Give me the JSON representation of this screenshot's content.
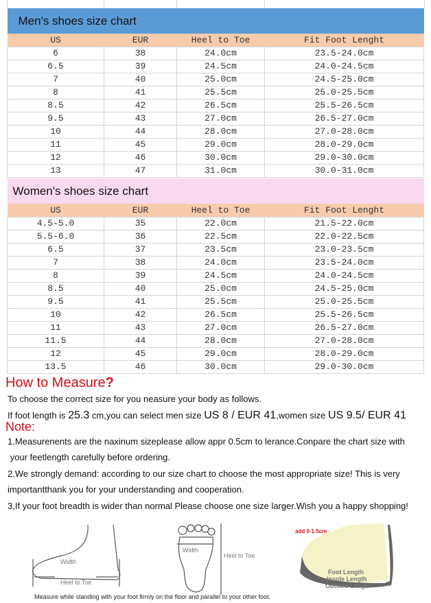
{
  "men": {
    "title": "Men's shoes size chart",
    "columns": [
      "US",
      "EUR",
      "Heel to Toe",
      "Fit Foot Lenght"
    ],
    "rows": [
      [
        "6",
        "38",
        "24.0cm",
        "23.5-24.0cm"
      ],
      [
        "6.5",
        "39",
        "24.5cm",
        "24.0-24.5cm"
      ],
      [
        "7",
        "40",
        "25.0cm",
        "24.5-25.0cm"
      ],
      [
        "8",
        "41",
        "25.5cm",
        "25.0-25.5cm"
      ],
      [
        "8.5",
        "42",
        "26.5cm",
        "25.5-26.5cm"
      ],
      [
        "9.5",
        "43",
        "27.0cm",
        "26.5-27.0cm"
      ],
      [
        "10",
        "44",
        "28.0cm",
        "27.0-28.0cm"
      ],
      [
        "11",
        "45",
        "29.0cm",
        "28.0-29.0cm"
      ],
      [
        "12",
        "46",
        "30.0cm",
        "29.0-30.0cm"
      ],
      [
        "13",
        "47",
        "31.0cm",
        "30.0-31.0cm"
      ]
    ]
  },
  "women": {
    "title": "Women's  shoes size chart",
    "columns": [
      "US",
      "EUR",
      "Heel to Toe",
      "Fit Foot Lenght"
    ],
    "rows": [
      [
        "4.5-5.0",
        "35",
        "22.0cm",
        "21.5-22.0cm"
      ],
      [
        "5.5-6.0",
        "36",
        "22.5cm",
        "22.0-22.5cm"
      ],
      [
        "6.5",
        "37",
        "23.5cm",
        "23.0-23.5cm"
      ],
      [
        "7",
        "38",
        "24.0cm",
        "23.5-24.0cm"
      ],
      [
        "8",
        "39",
        "24.5cm",
        "24.0-24.5cm"
      ],
      [
        "8.5",
        "40",
        "25.0cm",
        "24.5-25.0cm"
      ],
      [
        "9.5",
        "41",
        "25.5cm",
        "25.0-25.5cm"
      ],
      [
        "10",
        "42",
        "26.5cm",
        "25.5-26.5cm"
      ],
      [
        "11",
        "43",
        "27.0cm",
        "26.5-27.0cm"
      ],
      [
        "11.5",
        "44",
        "28.0cm",
        "27.0-28.0cm"
      ],
      [
        "12",
        "45",
        "29.0cm",
        "28.0-29.0cm"
      ],
      [
        "13.5",
        "46",
        "30.0cm",
        "29.0-30.0cm"
      ]
    ]
  },
  "measure": {
    "heading": "How to Measure",
    "heading_mark": "?",
    "intro": "To choose the correct size for you neasure your body as follows.",
    "example_a": "If foot length is ",
    "example_len": "25.3",
    "example_b": " cm,you can select men size ",
    "example_men": "US 8 / EUR 41",
    "example_c": ",women size ",
    "example_women": "US 9.5/ EUR 41"
  },
  "note": {
    "heading": "Note:",
    "lines": [
      "1.Measurenents are the naxinum sizeplease allow appr 0.5cm to lerance.Conpare the chart size with",
      " your feetlength carefully before ordering.",
      "2.We strongly demand: according to our size chart to choose the most appropriate size! This is very",
      "importantthank you for your understanding and cooperation.",
      "3,If your foot breadth is wider than normal Please choose one size larger.Wish you a happy shopping!"
    ]
  },
  "diagram": {
    "side_width": "Width",
    "side_heel_toe": "Heel to Toe",
    "top_width": "Width",
    "top_heel_toe": "Heel to Toe",
    "add": "add 0-1.5cm",
    "foot_length": "Foot Length",
    "insole_length": "Insole Length",
    "outsole_length": "Outsole Length",
    "caption": "Measure while standing with your foot firmly on the floor and parallel to your other foot."
  }
}
